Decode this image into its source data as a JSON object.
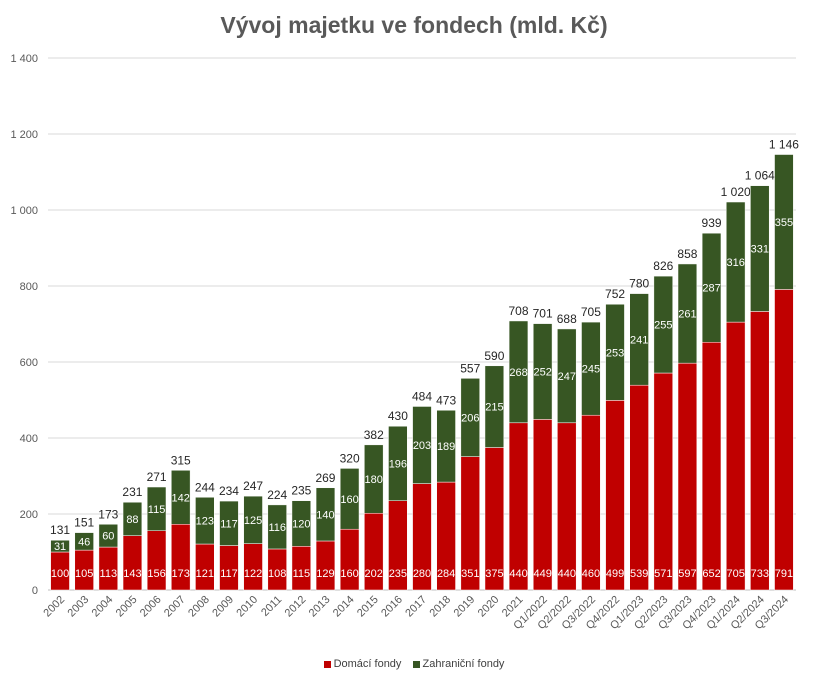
{
  "chart_data": {
    "type": "bar",
    "stacked": true,
    "title": "Vývoj majetku ve fondech (mld. Kč)",
    "xlabel": "",
    "ylabel": "",
    "ylim": [
      0,
      1400
    ],
    "yticks": [
      0,
      200,
      400,
      600,
      800,
      1000,
      1200,
      1400
    ],
    "ytick_labels": [
      "0",
      "200",
      "400",
      "600",
      "800",
      "1 000",
      "1 200",
      "1 400"
    ],
    "grid": true,
    "legend_position": "bottom",
    "categories": [
      "2002",
      "2003",
      "2004",
      "2005",
      "2006",
      "2007",
      "2008",
      "2009",
      "2010",
      "2011",
      "2012",
      "2013",
      "2014",
      "2015",
      "2016",
      "2017",
      "2018",
      "2019",
      "2020",
      "2021",
      "Q1/2022",
      "Q2/2022",
      "Q3/2022",
      "Q4/2022",
      "Q1/2023",
      "Q2/2023",
      "Q3/2023",
      "Q4/2023",
      "Q1/2024",
      "Q2/2024",
      "Q3/2024"
    ],
    "series": [
      {
        "name": "Domácí fondy",
        "color": "#C00000",
        "values": [
          100,
          105,
          113,
          143,
          156,
          173,
          121,
          117,
          122,
          108,
          115,
          129,
          160,
          202,
          235,
          280,
          284,
          351,
          375,
          440,
          449,
          440,
          460,
          499,
          539,
          571,
          597,
          652,
          705,
          733,
          791
        ]
      },
      {
        "name": "Zahraniční fondy",
        "color": "#375623",
        "values": [
          31,
          46,
          60,
          88,
          115,
          142,
          123,
          117,
          125,
          116,
          120,
          140,
          160,
          180,
          196,
          203,
          189,
          206,
          215,
          268,
          252,
          247,
          245,
          253,
          241,
          255,
          261,
          287,
          316,
          331,
          355
        ]
      }
    ],
    "totals": [
      131,
      151,
      173,
      231,
      271,
      315,
      244,
      234,
      247,
      224,
      235,
      269,
      320,
      382,
      430,
      484,
      473,
      557,
      590,
      708,
      701,
      688,
      705,
      752,
      780,
      826,
      858,
      939,
      1020,
      1064,
      1146
    ],
    "total_labels": [
      "131",
      "151",
      "173",
      "231",
      "271",
      "315",
      "244",
      "234",
      "247",
      "224",
      "235",
      "269",
      "320",
      "382",
      "430",
      "484",
      "473",
      "557",
      "590",
      "708",
      "701",
      "688",
      "705",
      "752",
      "780",
      "826",
      "858",
      "939",
      "1 020",
      "1 064",
      "1 146"
    ]
  }
}
